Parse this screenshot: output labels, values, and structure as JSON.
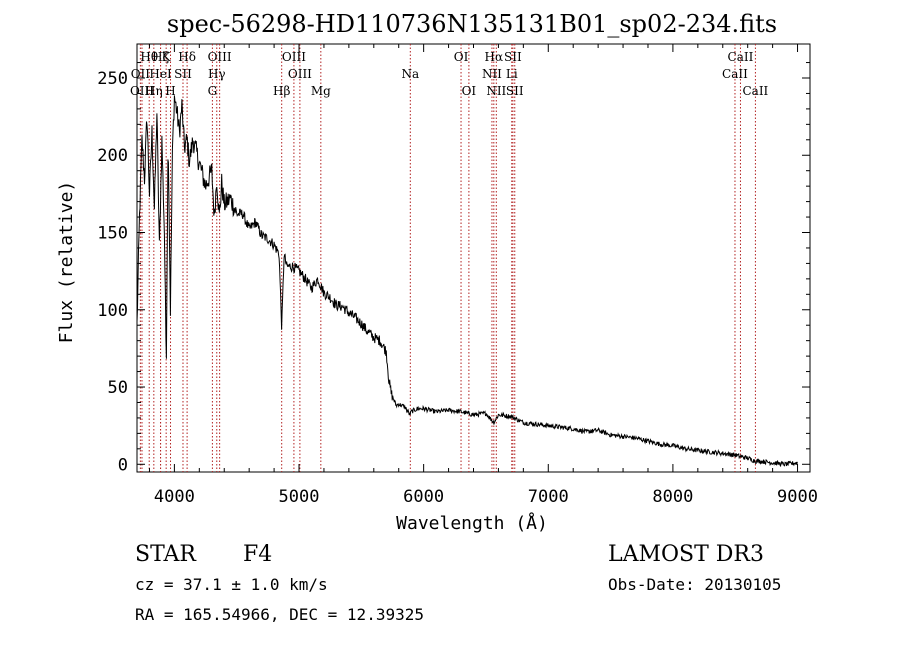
{
  "chart_data": {
    "type": "line",
    "title": "spec-56298-HD110736N135131B01_sp02-234.fits",
    "xlabel": "Wavelength (Å)",
    "ylabel": "Flux (relative)",
    "xlim": [
      3700,
      9100
    ],
    "ylim": [
      -5,
      272
    ],
    "xticks": [
      4000,
      5000,
      6000,
      7000,
      8000,
      9000
    ],
    "yticks": [
      0,
      50,
      100,
      150,
      200,
      250
    ],
    "series": [
      {
        "name": "flux",
        "x": [
          3700,
          3720,
          3740,
          3760,
          3780,
          3800,
          3820,
          3840,
          3860,
          3880,
          3900,
          3920,
          3935,
          3950,
          3968,
          3985,
          4000,
          4020,
          4040,
          4060,
          4080,
          4102,
          4120,
          4150,
          4200,
          4250,
          4300,
          4320,
          4340,
          4360,
          4380,
          4400,
          4450,
          4500,
          4550,
          4600,
          4650,
          4700,
          4750,
          4800,
          4840,
          4861,
          4880,
          4900,
          4950,
          5000,
          5050,
          5100,
          5150,
          5200,
          5250,
          5300,
          5350,
          5400,
          5450,
          5500,
          5550,
          5600,
          5650,
          5700,
          5720,
          5740,
          5760,
          5780,
          5800,
          5850,
          5890,
          5900,
          5950,
          6000,
          6100,
          6200,
          6300,
          6400,
          6500,
          6563,
          6600,
          6700,
          6800,
          6900,
          7000,
          7100,
          7200,
          7300,
          7400,
          7500,
          7600,
          7700,
          7800,
          7900,
          8000,
          8100,
          8200,
          8300,
          8400,
          8500,
          8542,
          8600,
          8662,
          8700,
          8800,
          8900,
          9000
        ],
        "values": [
          90,
          160,
          210,
          185,
          225,
          175,
          215,
          165,
          228,
          140,
          210,
          150,
          65,
          215,
          100,
          205,
          238,
          228,
          215,
          232,
          205,
          210,
          196,
          210,
          195,
          180,
          190,
          160,
          185,
          160,
          182,
          168,
          172,
          162,
          162,
          152,
          157,
          148,
          146,
          142,
          136,
          88,
          136,
          128,
          128,
          125,
          120,
          114,
          120,
          111,
          108,
          103,
          102,
          98,
          95,
          91,
          86,
          82,
          80,
          73,
          55,
          46,
          42,
          38,
          39,
          37,
          32,
          34,
          36,
          36,
          34,
          35,
          34,
          32,
          33,
          27,
          32,
          31,
          27,
          26,
          25,
          24,
          23,
          21,
          22,
          19,
          18,
          17,
          15,
          13,
          12,
          10,
          9,
          8,
          7,
          6,
          5,
          4,
          2,
          2,
          1,
          0,
          1
        ]
      }
    ],
    "lines": [
      {
        "name": "Hθ",
        "wave": 3798,
        "row": 0
      },
      {
        "name": "OII",
        "wave": 3727,
        "row": 1
      },
      {
        "name": "OIII",
        "wave": 3740,
        "row": 2
      },
      {
        "name": "Hη",
        "wave": 3835,
        "row": 2
      },
      {
        "name": "Hζ",
        "wave": 3889,
        "row": 0
      },
      {
        "name": "HeI",
        "wave": 3889,
        "row": 1
      },
      {
        "name": "K",
        "wave": 3934,
        "row": 0
      },
      {
        "name": "H",
        "wave": 3969,
        "row": 2
      },
      {
        "name": "SII",
        "wave": 4069,
        "row": 1
      },
      {
        "name": "Hδ",
        "wave": 4102,
        "row": 0
      },
      {
        "name": "OIII",
        "wave": 4363,
        "row": 0
      },
      {
        "name": "Hγ",
        "wave": 4340,
        "row": 1
      },
      {
        "name": "G",
        "wave": 4305,
        "row": 2
      },
      {
        "name": "Hβ",
        "wave": 4861,
        "row": 2
      },
      {
        "name": "OIII",
        "wave": 4959,
        "row": 0
      },
      {
        "name": "OIII",
        "wave": 5007,
        "row": 1
      },
      {
        "name": "Mg",
        "wave": 5175,
        "row": 2
      },
      {
        "name": "Na",
        "wave": 5893,
        "row": 1
      },
      {
        "name": "OI",
        "wave": 6300,
        "row": 0
      },
      {
        "name": "OI",
        "wave": 6363,
        "row": 2
      },
      {
        "name": "Hα",
        "wave": 6563,
        "row": 0
      },
      {
        "name": "NII",
        "wave": 6548,
        "row": 1
      },
      {
        "name": "NII",
        "wave": 6583,
        "row": 2
      },
      {
        "name": "SII",
        "wave": 6716,
        "row": 0
      },
      {
        "name": "Li",
        "wave": 6707,
        "row": 1
      },
      {
        "name": "SII",
        "wave": 6731,
        "row": 2
      },
      {
        "name": "CaII",
        "wave": 8542,
        "row": 0
      },
      {
        "name": "CaII",
        "wave": 8498,
        "row": 1
      },
      {
        "name": "CaII",
        "wave": 8662,
        "row": 2
      }
    ]
  },
  "info": {
    "class": "STAR",
    "subclass": "F4",
    "survey": "LAMOST DR3",
    "cz": "cz = 37.1 ± 1.0 km/s",
    "obs_date": "Obs-Date: 20130105",
    "coords": "RA = 165.54966, DEC =  12.39325"
  },
  "colors": {
    "line_marker": "#b22222",
    "spectrum": "#000000"
  }
}
